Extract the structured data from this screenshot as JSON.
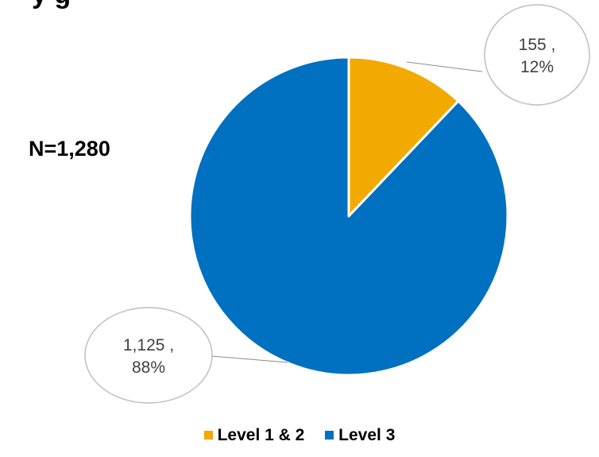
{
  "header": {
    "title_visible_text": "y   g",
    "n_label": "N=1,280"
  },
  "colors": {
    "level_1_2": "#F2A900",
    "level_3": "#0070C0",
    "bubble_border": "#BFBFBF",
    "leader_line": "#8C8C8C"
  },
  "chart_data": {
    "type": "pie",
    "title": "",
    "categories": [
      "Level 1 & 2",
      "Level 3"
    ],
    "values": [
      155,
      1125
    ],
    "percent_labels": [
      "12%",
      "88%"
    ],
    "value_labels": [
      "155 ,",
      "1,125 ,"
    ],
    "legend_position": "bottom",
    "total_label": "N=1,280"
  }
}
